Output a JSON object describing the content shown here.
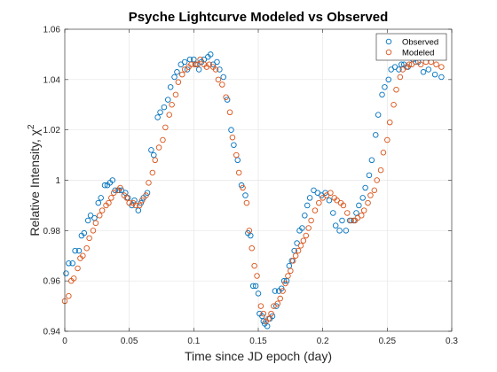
{
  "chart_data": {
    "type": "scatter",
    "title": "Psyche Lightcurve Modeled vs Observed",
    "xlabel": "Time since JD epoch (day)",
    "ylabel": "Relative Intensity, χ",
    "ylabel_superscript": "2",
    "xlim": [
      0,
      0.3
    ],
    "ylim": [
      0.94,
      1.06
    ],
    "xticks": [
      0,
      0.05,
      0.1,
      0.15,
      0.2,
      0.25,
      0.3
    ],
    "xtick_labels": [
      "0",
      "0.05",
      "0.1",
      "0.15",
      "0.2",
      "0.25",
      "0.3"
    ],
    "yticks": [
      0.94,
      0.96,
      0.98,
      1.0,
      1.02,
      1.04,
      1.06
    ],
    "ytick_labels": [
      "0.94",
      "0.96",
      "0.98",
      "1",
      "1.02",
      "1.04",
      "1.06"
    ],
    "grid": true,
    "legend_position": "top-right",
    "series": [
      {
        "name": "Observed",
        "color": "#0072BD",
        "marker": "circle",
        "x": [
          0.001,
          0.003,
          0.006,
          0.008,
          0.011,
          0.013,
          0.015,
          0.018,
          0.02,
          0.023,
          0.026,
          0.028,
          0.031,
          0.033,
          0.035,
          0.037,
          0.039,
          0.042,
          0.044,
          0.047,
          0.049,
          0.052,
          0.054,
          0.057,
          0.059,
          0.061,
          0.064,
          0.067,
          0.069,
          0.072,
          0.074,
          0.077,
          0.08,
          0.082,
          0.085,
          0.087,
          0.09,
          0.093,
          0.095,
          0.097,
          0.1,
          0.102,
          0.104,
          0.106,
          0.108,
          0.111,
          0.113,
          0.115,
          0.118,
          0.12,
          0.123,
          0.126,
          0.129,
          0.131,
          0.134,
          0.137,
          0.14,
          0.142,
          0.144,
          0.146,
          0.148,
          0.15,
          0.151,
          0.153,
          0.154,
          0.155,
          0.157,
          0.159,
          0.161,
          0.163,
          0.164,
          0.166,
          0.168,
          0.17,
          0.172,
          0.174,
          0.176,
          0.178,
          0.18,
          0.182,
          0.184,
          0.186,
          0.188,
          0.19,
          0.193,
          0.196,
          0.199,
          0.202,
          0.205,
          0.208,
          0.21,
          0.213,
          0.215,
          0.218,
          0.221,
          0.224,
          0.226,
          0.228,
          0.231,
          0.233,
          0.236,
          0.238,
          0.241,
          0.243,
          0.246,
          0.248,
          0.251,
          0.253,
          0.256,
          0.259,
          0.261,
          0.263,
          0.266,
          0.27,
          0.274,
          0.278,
          0.282,
          0.287,
          0.292
        ],
        "y": [
          0.963,
          0.967,
          0.967,
          0.972,
          0.972,
          0.978,
          0.979,
          0.984,
          0.986,
          0.985,
          0.991,
          0.993,
          0.998,
          0.998,
          0.999,
          1.0,
          0.996,
          0.996,
          0.996,
          0.995,
          0.993,
          0.99,
          0.992,
          0.988,
          0.991,
          0.993,
          0.995,
          1.012,
          1.01,
          1.025,
          1.027,
          1.029,
          1.032,
          1.037,
          1.041,
          1.043,
          1.046,
          1.047,
          1.044,
          1.048,
          1.048,
          1.046,
          1.044,
          1.047,
          1.048,
          1.049,
          1.05,
          1.046,
          1.047,
          1.044,
          1.041,
          1.032,
          1.02,
          1.014,
          1.008,
          0.998,
          0.994,
          0.979,
          0.978,
          0.958,
          0.958,
          0.955,
          0.947,
          0.946,
          0.944,
          0.943,
          0.942,
          0.945,
          0.946,
          0.956,
          0.95,
          0.956,
          0.957,
          0.96,
          0.96,
          0.966,
          0.968,
          0.972,
          0.975,
          0.98,
          0.981,
          0.986,
          0.99,
          0.993,
          0.996,
          0.995,
          0.994,
          0.995,
          0.992,
          0.987,
          0.982,
          0.98,
          0.984,
          0.98,
          0.984,
          0.984,
          0.987,
          0.99,
          0.993,
          0.997,
          1.002,
          1.008,
          1.018,
          1.026,
          1.034,
          1.037,
          1.04,
          1.044,
          1.045,
          1.044,
          1.046,
          1.046,
          1.045,
          1.048,
          1.047,
          1.043,
          1.044,
          1.042,
          1.041
        ]
      },
      {
        "name": "Modeled",
        "color": "#D95319",
        "marker": "circle",
        "x": [
          0.0,
          0.003,
          0.005,
          0.007,
          0.01,
          0.012,
          0.014,
          0.017,
          0.019,
          0.022,
          0.024,
          0.027,
          0.029,
          0.032,
          0.034,
          0.036,
          0.038,
          0.041,
          0.043,
          0.046,
          0.048,
          0.05,
          0.053,
          0.055,
          0.058,
          0.06,
          0.063,
          0.065,
          0.068,
          0.07,
          0.073,
          0.076,
          0.078,
          0.081,
          0.083,
          0.086,
          0.088,
          0.091,
          0.093,
          0.096,
          0.098,
          0.101,
          0.103,
          0.105,
          0.108,
          0.11,
          0.112,
          0.115,
          0.117,
          0.119,
          0.122,
          0.125,
          0.128,
          0.13,
          0.133,
          0.135,
          0.138,
          0.141,
          0.143,
          0.145,
          0.147,
          0.149,
          0.152,
          0.154,
          0.156,
          0.158,
          0.16,
          0.162,
          0.165,
          0.167,
          0.169,
          0.171,
          0.173,
          0.175,
          0.177,
          0.179,
          0.181,
          0.183,
          0.185,
          0.187,
          0.189,
          0.191,
          0.194,
          0.197,
          0.2,
          0.203,
          0.206,
          0.209,
          0.211,
          0.214,
          0.216,
          0.219,
          0.222,
          0.225,
          0.227,
          0.23,
          0.232,
          0.235,
          0.237,
          0.24,
          0.242,
          0.245,
          0.247,
          0.25,
          0.252,
          0.255,
          0.257,
          0.26,
          0.262,
          0.265,
          0.267,
          0.269,
          0.272,
          0.276,
          0.28,
          0.284,
          0.288,
          0.292
        ],
        "y": [
          0.952,
          0.954,
          0.96,
          0.961,
          0.965,
          0.969,
          0.97,
          0.973,
          0.977,
          0.98,
          0.983,
          0.986,
          0.988,
          0.99,
          0.991,
          0.993,
          0.995,
          0.996,
          0.997,
          0.994,
          0.993,
          0.991,
          0.991,
          0.99,
          0.99,
          0.992,
          0.994,
          0.999,
          1.003,
          1.008,
          1.013,
          1.016,
          1.021,
          1.026,
          1.03,
          1.034,
          1.039,
          1.042,
          1.044,
          1.045,
          1.046,
          1.046,
          1.046,
          1.048,
          1.046,
          1.045,
          1.046,
          1.045,
          1.044,
          1.04,
          1.038,
          1.033,
          1.027,
          1.017,
          1.01,
          1.003,
          0.997,
          0.991,
          0.98,
          0.973,
          0.966,
          0.962,
          0.95,
          0.947,
          0.944,
          0.945,
          0.947,
          0.95,
          0.951,
          0.953,
          0.956,
          0.959,
          0.962,
          0.964,
          0.968,
          0.97,
          0.972,
          0.974,
          0.976,
          0.978,
          0.981,
          0.984,
          0.988,
          0.991,
          0.993,
          0.994,
          0.995,
          0.993,
          0.992,
          0.991,
          0.99,
          0.987,
          0.984,
          0.984,
          0.985,
          0.986,
          0.988,
          0.991,
          0.994,
          0.996,
          1.0,
          1.004,
          1.011,
          1.016,
          1.023,
          1.03,
          1.036,
          1.041,
          1.044,
          1.045,
          1.046,
          1.046,
          1.047,
          1.046,
          1.047,
          1.047,
          1.046,
          1.045
        ]
      }
    ]
  }
}
